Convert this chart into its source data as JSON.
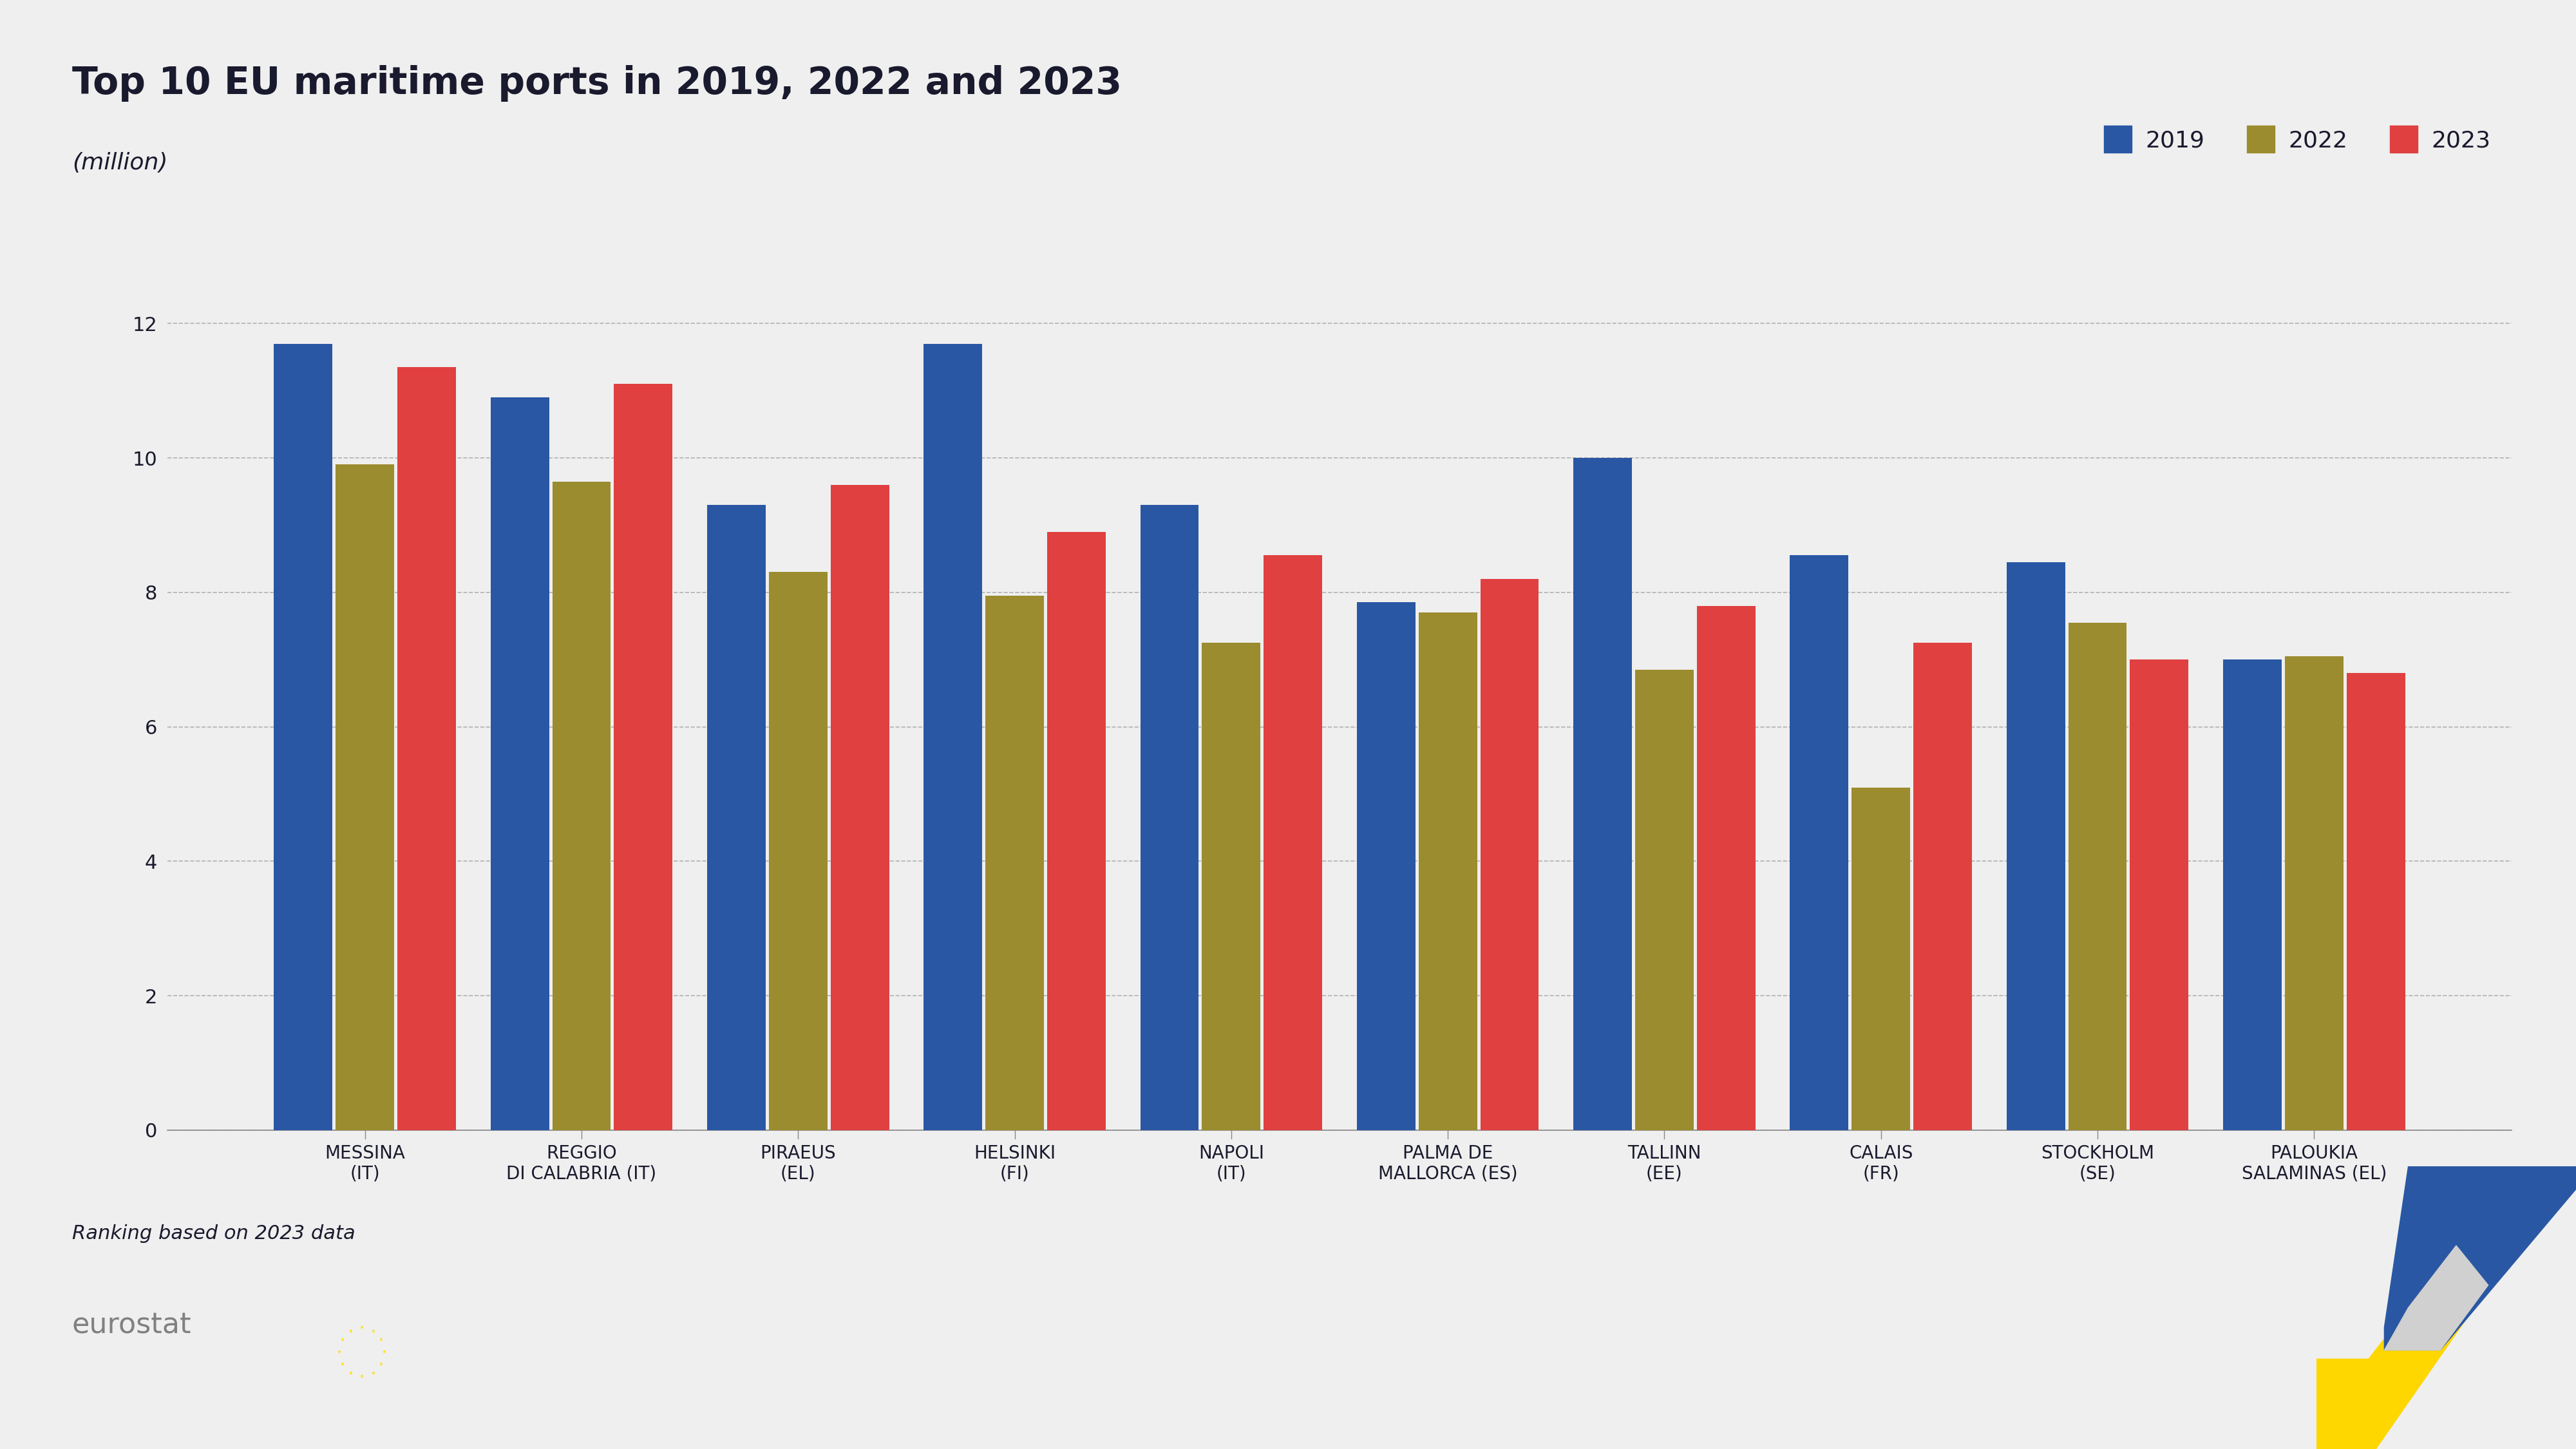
{
  "title": "Top 10 EU maritime ports in 2019, 2022 and 2023",
  "subtitle": "(million)",
  "footnote": "Ranking based on 2023 data",
  "categories": [
    "MESSINA\n(IT)",
    "REGGIO\nDI CALABRIA (IT)",
    "PIRAEUS\n(EL)",
    "HELSINKI\n(FI)",
    "NAPOLI\n(IT)",
    "PALMA DE\nMALLORCA (ES)",
    "TALLINN\n(EE)",
    "CALAIS\n(FR)",
    "STOCKHOLM\n(SE)",
    "PALOUKIA\nSALAMINAS (EL)"
  ],
  "values_2019": [
    11.7,
    10.9,
    9.3,
    11.7,
    9.3,
    7.85,
    10.0,
    8.55,
    8.45,
    7.0
  ],
  "values_2022": [
    9.9,
    9.65,
    8.3,
    7.95,
    7.25,
    7.7,
    6.85,
    5.1,
    7.55,
    7.05
  ],
  "values_2023": [
    11.35,
    11.1,
    9.6,
    8.9,
    8.55,
    8.2,
    7.8,
    7.25,
    7.0,
    6.8
  ],
  "color_2019": "#2957A4",
  "color_2022": "#9B8C2F",
  "color_2023": "#E04040",
  "background_color": "#EFEFEF",
  "plot_area_color": "#EFEFEF",
  "bottom_area_color": "#FFFFFF",
  "ylim": [
    0,
    12.5
  ],
  "yticks": [
    0,
    2,
    4,
    6,
    8,
    10,
    12
  ],
  "legend_labels": [
    "2019",
    "2022",
    "2023"
  ],
  "title_fontsize": 42,
  "subtitle_fontsize": 26,
  "tick_fontsize": 22,
  "legend_fontsize": 26,
  "footnote_fontsize": 22,
  "xtick_fontsize": 20
}
